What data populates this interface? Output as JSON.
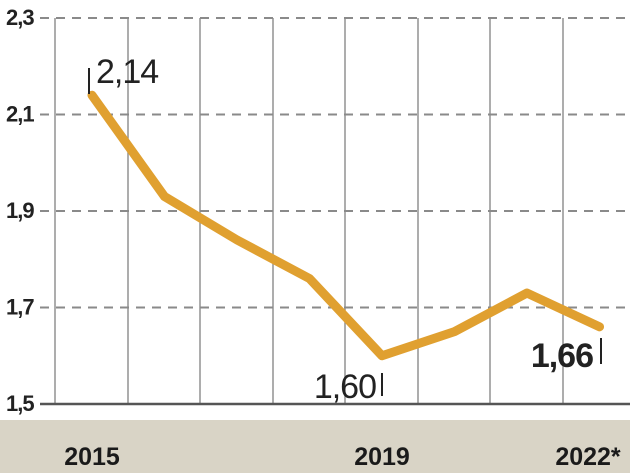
{
  "chart_data": {
    "type": "line",
    "title": "",
    "xlabel": "",
    "ylabel": "",
    "x": [
      2015,
      2016,
      2017,
      2018,
      2019,
      2020,
      2021,
      2022
    ],
    "x_tick_labels": [
      "2015",
      "2019",
      "2022*"
    ],
    "y_tick_labels": [
      "2,3",
      "2,1",
      "1,9",
      "1,7",
      "1,5"
    ],
    "ylim": [
      1.5,
      2.3
    ],
    "series": [
      {
        "values": [
          2.14,
          1.93,
          1.84,
          1.76,
          1.6,
          1.65,
          1.73,
          1.66
        ],
        "color": "#e0a030"
      }
    ],
    "data_labels": [
      "2,14",
      "1,60",
      "1,66"
    ],
    "grid": true,
    "grid_style": "vertical solid, horizontal dashed"
  }
}
